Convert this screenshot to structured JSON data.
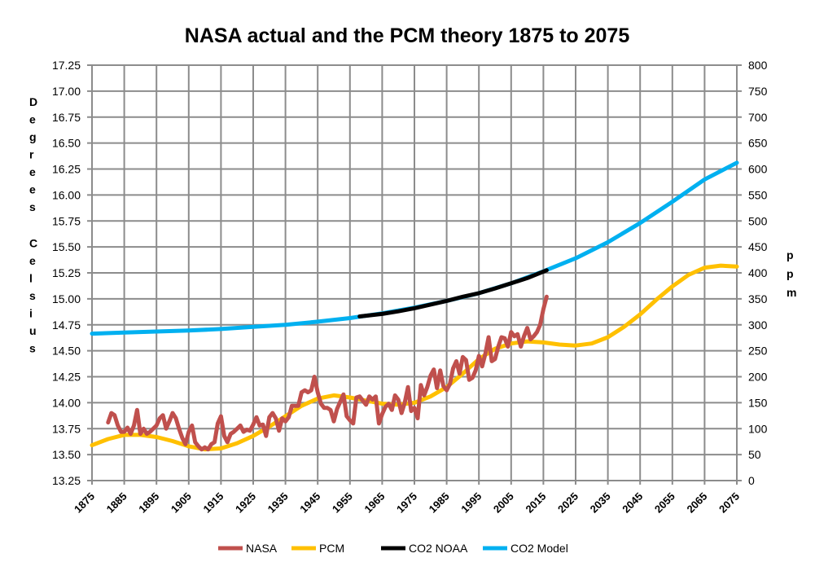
{
  "chart_data": {
    "type": "line",
    "title": "NASA actual and the PCM theory 1875 to 2075",
    "ylabel": "Degrees Celsius",
    "y2label": "ppm",
    "xlim": [
      1875,
      2075
    ],
    "ylim": [
      13.25,
      17.25
    ],
    "y2lim": [
      0,
      800
    ],
    "grid": true,
    "legend": "bottom",
    "xticks": [
      1875,
      1885,
      1895,
      1905,
      1915,
      1925,
      1935,
      1945,
      1955,
      1965,
      1975,
      1985,
      1995,
      2005,
      2015,
      2025,
      2035,
      2045,
      2055,
      2065,
      2075
    ],
    "yticks": [
      "13.25",
      "13.50",
      "13.75",
      "14.00",
      "14.25",
      "14.50",
      "14.75",
      "15.00",
      "15.25",
      "15.50",
      "15.75",
      "16.00",
      "16.25",
      "16.50",
      "16.75",
      "17.00",
      "17.25"
    ],
    "y2ticks": [
      "0",
      "50",
      "100",
      "150",
      "200",
      "250",
      "300",
      "350",
      "400",
      "450",
      "500",
      "550",
      "600",
      "650",
      "700",
      "750",
      "800"
    ],
    "series": [
      {
        "name": "NASA",
        "axis": "left",
        "color": "#C0504D",
        "x": [
          1880,
          1881,
          1882,
          1883,
          1884,
          1885,
          1886,
          1887,
          1888,
          1889,
          1890,
          1891,
          1892,
          1893,
          1894,
          1895,
          1896,
          1897,
          1898,
          1899,
          1900,
          1901,
          1902,
          1903,
          1904,
          1905,
          1906,
          1907,
          1908,
          1909,
          1910,
          1911,
          1912,
          1913,
          1914,
          1915,
          1916,
          1917,
          1918,
          1919,
          1920,
          1921,
          1922,
          1923,
          1924,
          1925,
          1926,
          1927,
          1928,
          1929,
          1930,
          1931,
          1932,
          1933,
          1934,
          1935,
          1936,
          1937,
          1938,
          1939,
          1940,
          1941,
          1942,
          1943,
          1944,
          1945,
          1946,
          1947,
          1948,
          1949,
          1950,
          1951,
          1952,
          1953,
          1954,
          1955,
          1956,
          1957,
          1958,
          1959,
          1960,
          1961,
          1962,
          1963,
          1964,
          1965,
          1966,
          1967,
          1968,
          1969,
          1970,
          1971,
          1972,
          1973,
          1974,
          1975,
          1976,
          1977,
          1978,
          1979,
          1980,
          1981,
          1982,
          1983,
          1984,
          1985,
          1986,
          1987,
          1988,
          1989,
          1990,
          1991,
          1992,
          1993,
          1994,
          1995,
          1996,
          1997,
          1998,
          1999,
          2000,
          2001,
          2002,
          2003,
          2004,
          2005,
          2006,
          2007,
          2008,
          2009,
          2010,
          2011,
          2012,
          2013,
          2014,
          2015,
          2016
        ],
        "y": [
          13.81,
          13.9,
          13.88,
          13.78,
          13.72,
          13.72,
          13.76,
          13.7,
          13.78,
          13.93,
          13.7,
          13.75,
          13.7,
          13.72,
          13.75,
          13.78,
          13.85,
          13.88,
          13.75,
          13.82,
          13.9,
          13.85,
          13.75,
          13.66,
          13.6,
          13.72,
          13.78,
          13.62,
          13.58,
          13.55,
          13.57,
          13.55,
          13.6,
          13.62,
          13.8,
          13.87,
          13.68,
          13.62,
          13.7,
          13.72,
          13.75,
          13.78,
          13.72,
          13.74,
          13.73,
          13.79,
          13.86,
          13.78,
          13.79,
          13.68,
          13.86,
          13.9,
          13.85,
          13.73,
          13.85,
          13.82,
          13.86,
          13.97,
          13.97,
          13.97,
          14.1,
          14.12,
          14.1,
          14.12,
          14.25,
          14.1,
          13.99,
          13.95,
          13.95,
          13.93,
          13.82,
          13.94,
          14.01,
          14.08,
          13.87,
          13.83,
          13.8,
          14.05,
          14.06,
          14.02,
          13.98,
          14.06,
          14.03,
          14.06,
          13.8,
          13.89,
          13.96,
          13.99,
          13.93,
          14.07,
          14.03,
          13.9,
          14.0,
          14.15,
          13.92,
          13.95,
          13.85,
          14.17,
          14.07,
          14.15,
          14.26,
          14.32,
          14.14,
          14.31,
          14.16,
          14.12,
          14.18,
          14.33,
          14.4,
          14.28,
          14.44,
          14.41,
          14.22,
          14.24,
          14.31,
          14.45,
          14.35,
          14.47,
          14.63,
          14.4,
          14.42,
          14.54,
          14.63,
          14.62,
          14.54,
          14.68,
          14.64,
          14.66,
          14.54,
          14.64,
          14.72,
          14.61,
          14.64,
          14.68,
          14.75,
          14.9,
          15.02
        ]
      },
      {
        "name": "PCM",
        "axis": "left",
        "color": "#FFC000",
        "x": [
          1875,
          1880,
          1885,
          1890,
          1895,
          1900,
          1905,
          1910,
          1915,
          1920,
          1925,
          1930,
          1935,
          1940,
          1945,
          1950,
          1955,
          1960,
          1965,
          1970,
          1975,
          1980,
          1985,
          1990,
          1995,
          2000,
          2005,
          2010,
          2015,
          2020,
          2025,
          2030,
          2035,
          2040,
          2045,
          2050,
          2055,
          2060,
          2065,
          2070,
          2075
        ],
        "y": [
          13.59,
          13.65,
          13.69,
          13.69,
          13.67,
          13.63,
          13.58,
          13.55,
          13.56,
          13.61,
          13.68,
          13.77,
          13.87,
          13.97,
          14.04,
          14.07,
          14.05,
          14.02,
          13.99,
          13.98,
          14.0,
          14.06,
          14.15,
          14.28,
          14.42,
          14.52,
          14.57,
          14.59,
          14.58,
          14.56,
          14.55,
          14.57,
          14.63,
          14.73,
          14.85,
          14.99,
          15.12,
          15.23,
          15.3,
          15.32,
          15.31
        ]
      },
      {
        "name": "CO2 NOAA",
        "axis": "right",
        "color": "#000000",
        "x": [
          1958,
          1965,
          1970,
          1975,
          1980,
          1985,
          1990,
          1995,
          2000,
          2005,
          2010,
          2016
        ],
        "y": [
          316,
          321,
          326,
          332,
          339,
          346,
          354,
          361,
          370,
          380,
          390,
          405
        ]
      },
      {
        "name": "CO2 Model",
        "axis": "right",
        "color": "#00B0F0",
        "x": [
          1875,
          1885,
          1895,
          1905,
          1915,
          1925,
          1935,
          1945,
          1955,
          1965,
          1975,
          1985,
          1995,
          2005,
          2015,
          2025,
          2035,
          2045,
          2055,
          2065,
          2075
        ],
        "y": [
          283,
          285,
          287,
          289,
          292,
          296,
          300,
          306,
          313,
          322,
          333,
          346,
          361,
          380,
          403,
          428,
          459,
          496,
          537,
          580,
          612
        ]
      }
    ]
  }
}
